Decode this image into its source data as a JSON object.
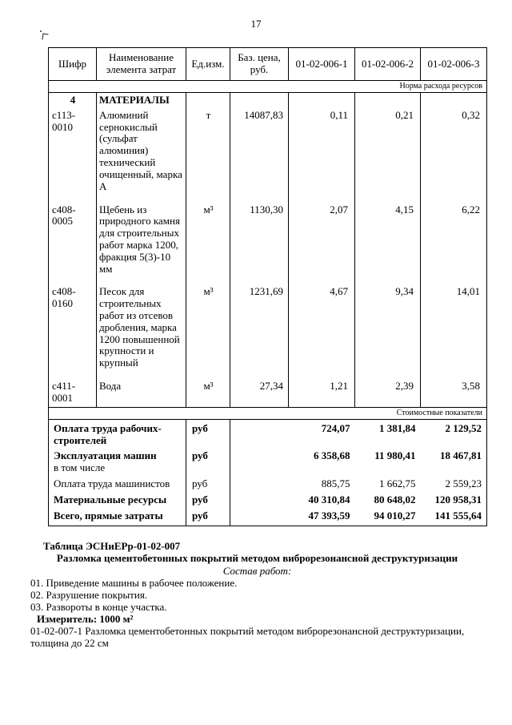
{
  "page": {
    "number": "17"
  },
  "table": {
    "header": {
      "shifr": "Шифр",
      "name": "Наименование элемента затрат",
      "unit": "Ед.изм.",
      "price": "Баз. цена, руб.",
      "n1": "01-02-006-1",
      "n2": "01-02-006-2",
      "n3": "01-02-006-3"
    },
    "sections": {
      "norm": "Норма расхода ресурсов",
      "cost": "Стоимостные показатели"
    },
    "materials_group": {
      "code": "4",
      "title": "МАТЕРИАЛЫ"
    },
    "materials": [
      {
        "code": "с113-0010",
        "name": "Алюминий сернокислый (сульфат алюминия) технический очищенный, марка А",
        "unit": "т",
        "price": "14087,83",
        "n1": "0,11",
        "n2": "0,21",
        "n3": "0,32"
      },
      {
        "code": "с408-0005",
        "name": "Щебень из природного камня для строительных работ марка 1200, фракция 5(3)-10 мм",
        "unit": "м³",
        "price": "1130,30",
        "n1": "2,07",
        "n2": "4,15",
        "n3": "6,22"
      },
      {
        "code": "с408-0160",
        "name": "Песок для строительных работ из отсевов дробления, марка 1200 повышенной крупности и крупный",
        "unit": "м³",
        "price": "1231,69",
        "n1": "4,67",
        "n2": "9,34",
        "n3": "14,01"
      },
      {
        "code": "с411-0001",
        "name": "Вода",
        "unit": "м³",
        "price": "27,34",
        "n1": "1,21",
        "n2": "2,39",
        "n3": "3,58"
      }
    ],
    "costs": [
      {
        "name": "Оплата труда рабочих-строителей",
        "unit": "руб",
        "n1": "724,07",
        "n2": "1 381,84",
        "n3": "2 129,52"
      },
      {
        "name": "Эксплуатация машин",
        "note": "в том числе",
        "unit": "руб",
        "n1": "6 358,68",
        "n2": "11 980,41",
        "n3": "18 467,81"
      },
      {
        "name": "Оплата труда машинистов",
        "unit": "руб",
        "n1": "885,75",
        "n2": "1 662,75",
        "n3": "2 559,23"
      },
      {
        "name": "Материальные ресурсы",
        "unit": "руб",
        "n1": "40 310,84",
        "n2": "80 648,02",
        "n3": "120 958,31"
      },
      {
        "name": "Всего, прямые затраты",
        "unit": "руб",
        "n1": "47 393,59",
        "n2": "94 010,27",
        "n3": "141 555,64"
      }
    ]
  },
  "notes": {
    "table_label": "Таблица ЭСНиЕРр-01-02-007",
    "table_title": "Разломка цементобетонных покрытий методом виброрезонансной деструктуризации",
    "works_heading": "Состав работ:",
    "works": [
      "01. Приведение машины в рабочее положение.",
      "02. Разрушение покрытия.",
      "03. Развороты в конце участка."
    ],
    "measure": "Измеритель: 1000 м²",
    "item_line": "01-02-007-1 Разломка цементобетонных покрытий методом виброрезонансной деструктуризации, толщина до 22 см"
  }
}
